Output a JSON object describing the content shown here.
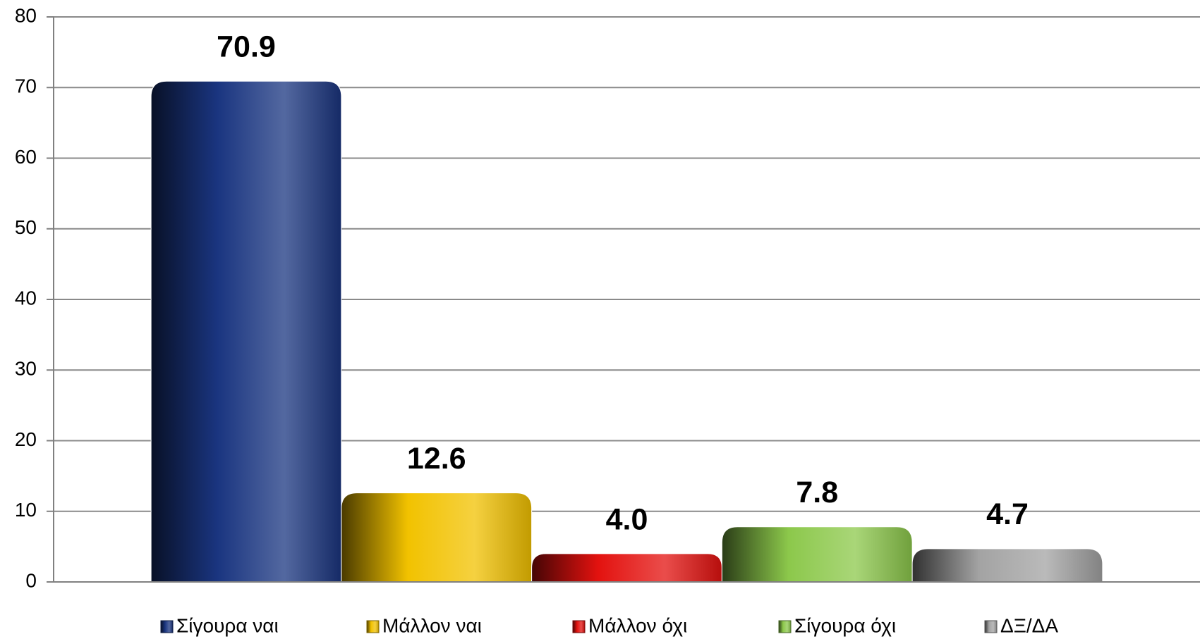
{
  "chart_data": {
    "type": "bar",
    "categories": [
      null
    ],
    "series": [
      {
        "name": "Σίγουρα ναι",
        "color": "#1a3580",
        "values": [
          70.9
        ],
        "value_labels": [
          "70.9"
        ]
      },
      {
        "name": "Μάλλον ναι",
        "color": "#f2c200",
        "values": [
          12.6
        ],
        "value_labels": [
          "12.6"
        ]
      },
      {
        "name": "Μάλλον όχι",
        "color": "#e3120f",
        "values": [
          4.0
        ],
        "value_labels": [
          "4.0"
        ]
      },
      {
        "name": "Σίγουρα όχι",
        "color": "#8cc84b",
        "values": [
          7.8
        ],
        "value_labels": [
          "7.8"
        ]
      },
      {
        "name": "ΔΞ/ΔΑ",
        "color": "#a3a3a3",
        "values": [
          4.7
        ],
        "value_labels": [
          "4.7"
        ]
      }
    ],
    "ylim": [
      0,
      80
    ],
    "yticks": [
      0,
      10,
      20,
      30,
      40,
      50,
      60,
      70,
      80
    ],
    "grid": true,
    "legend": "bottom"
  }
}
